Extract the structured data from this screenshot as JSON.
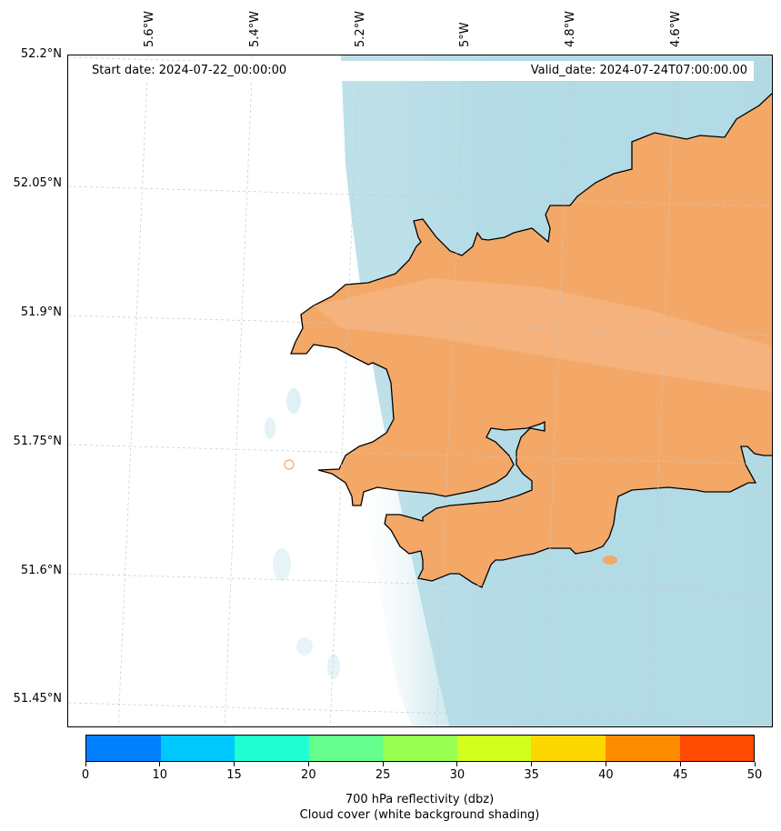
{
  "header": {
    "start_date": "Start date: 2024-07-22_00:00:00",
    "valid_date": "Valid_date: 2024-07-24T07:00:00.00"
  },
  "longitude_labels": [
    "5.6°W",
    "5.4°W",
    "5.2°W",
    "5°W",
    "4.8°W",
    "4.6°W"
  ],
  "latitude_labels": [
    "52.2°N",
    "52.05°N",
    "51.9°N",
    "51.75°N",
    "51.6°N",
    "51.45°N"
  ],
  "colorbar": {
    "ticks": [
      "0",
      "10",
      "15",
      "20",
      "25",
      "30",
      "35",
      "40",
      "45",
      "50"
    ],
    "colors": [
      "#0080ff",
      "#00c8ff",
      "#20ffd2",
      "#64ff8c",
      "#96ff50",
      "#d2ff1e",
      "#ffd700",
      "#ff8c00",
      "#ff4a00"
    ],
    "title_line1": "700 hPa reflectivity (dbz)",
    "title_line2": "Cloud cover (white background shading)"
  },
  "map": {
    "land_color": "#f3a868",
    "cloud_color": "#b4dce6",
    "coast_color": "#000000"
  }
}
